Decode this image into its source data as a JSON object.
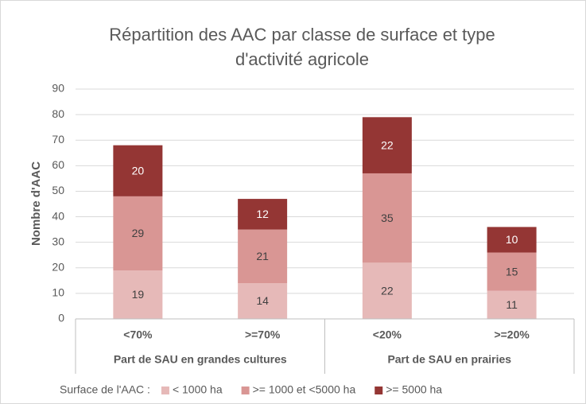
{
  "chart_data": {
    "type": "bar",
    "stacked": true,
    "title": [
      "Répartition des AAC par classe de surface et type",
      "d'activité agricole"
    ],
    "ylabel": "Nombre d'AAC",
    "categories": [
      "<70%",
      ">=70%",
      "<20%",
      ">=20%"
    ],
    "groups": [
      "Part de SAU en grandes cultures",
      "Part de SAU en prairies"
    ],
    "legend_title": "Surface de l'AAC :",
    "series": [
      {
        "name": "< 1000 ha",
        "color": "#e6b9b8",
        "values": [
          19,
          14,
          22,
          11
        ]
      },
      {
        "name": ">= 1000 et <5000 ha",
        "color": "#d99694",
        "values": [
          29,
          21,
          35,
          15
        ]
      },
      {
        "name": ">= 5000 ha",
        "color": "#943634",
        "values": [
          20,
          12,
          22,
          10
        ]
      }
    ],
    "ylim": [
      0,
      90
    ],
    "yticks": [
      0,
      10,
      20,
      30,
      40,
      50,
      60,
      70,
      80,
      90
    ],
    "grid": true,
    "legend": "bottom"
  }
}
